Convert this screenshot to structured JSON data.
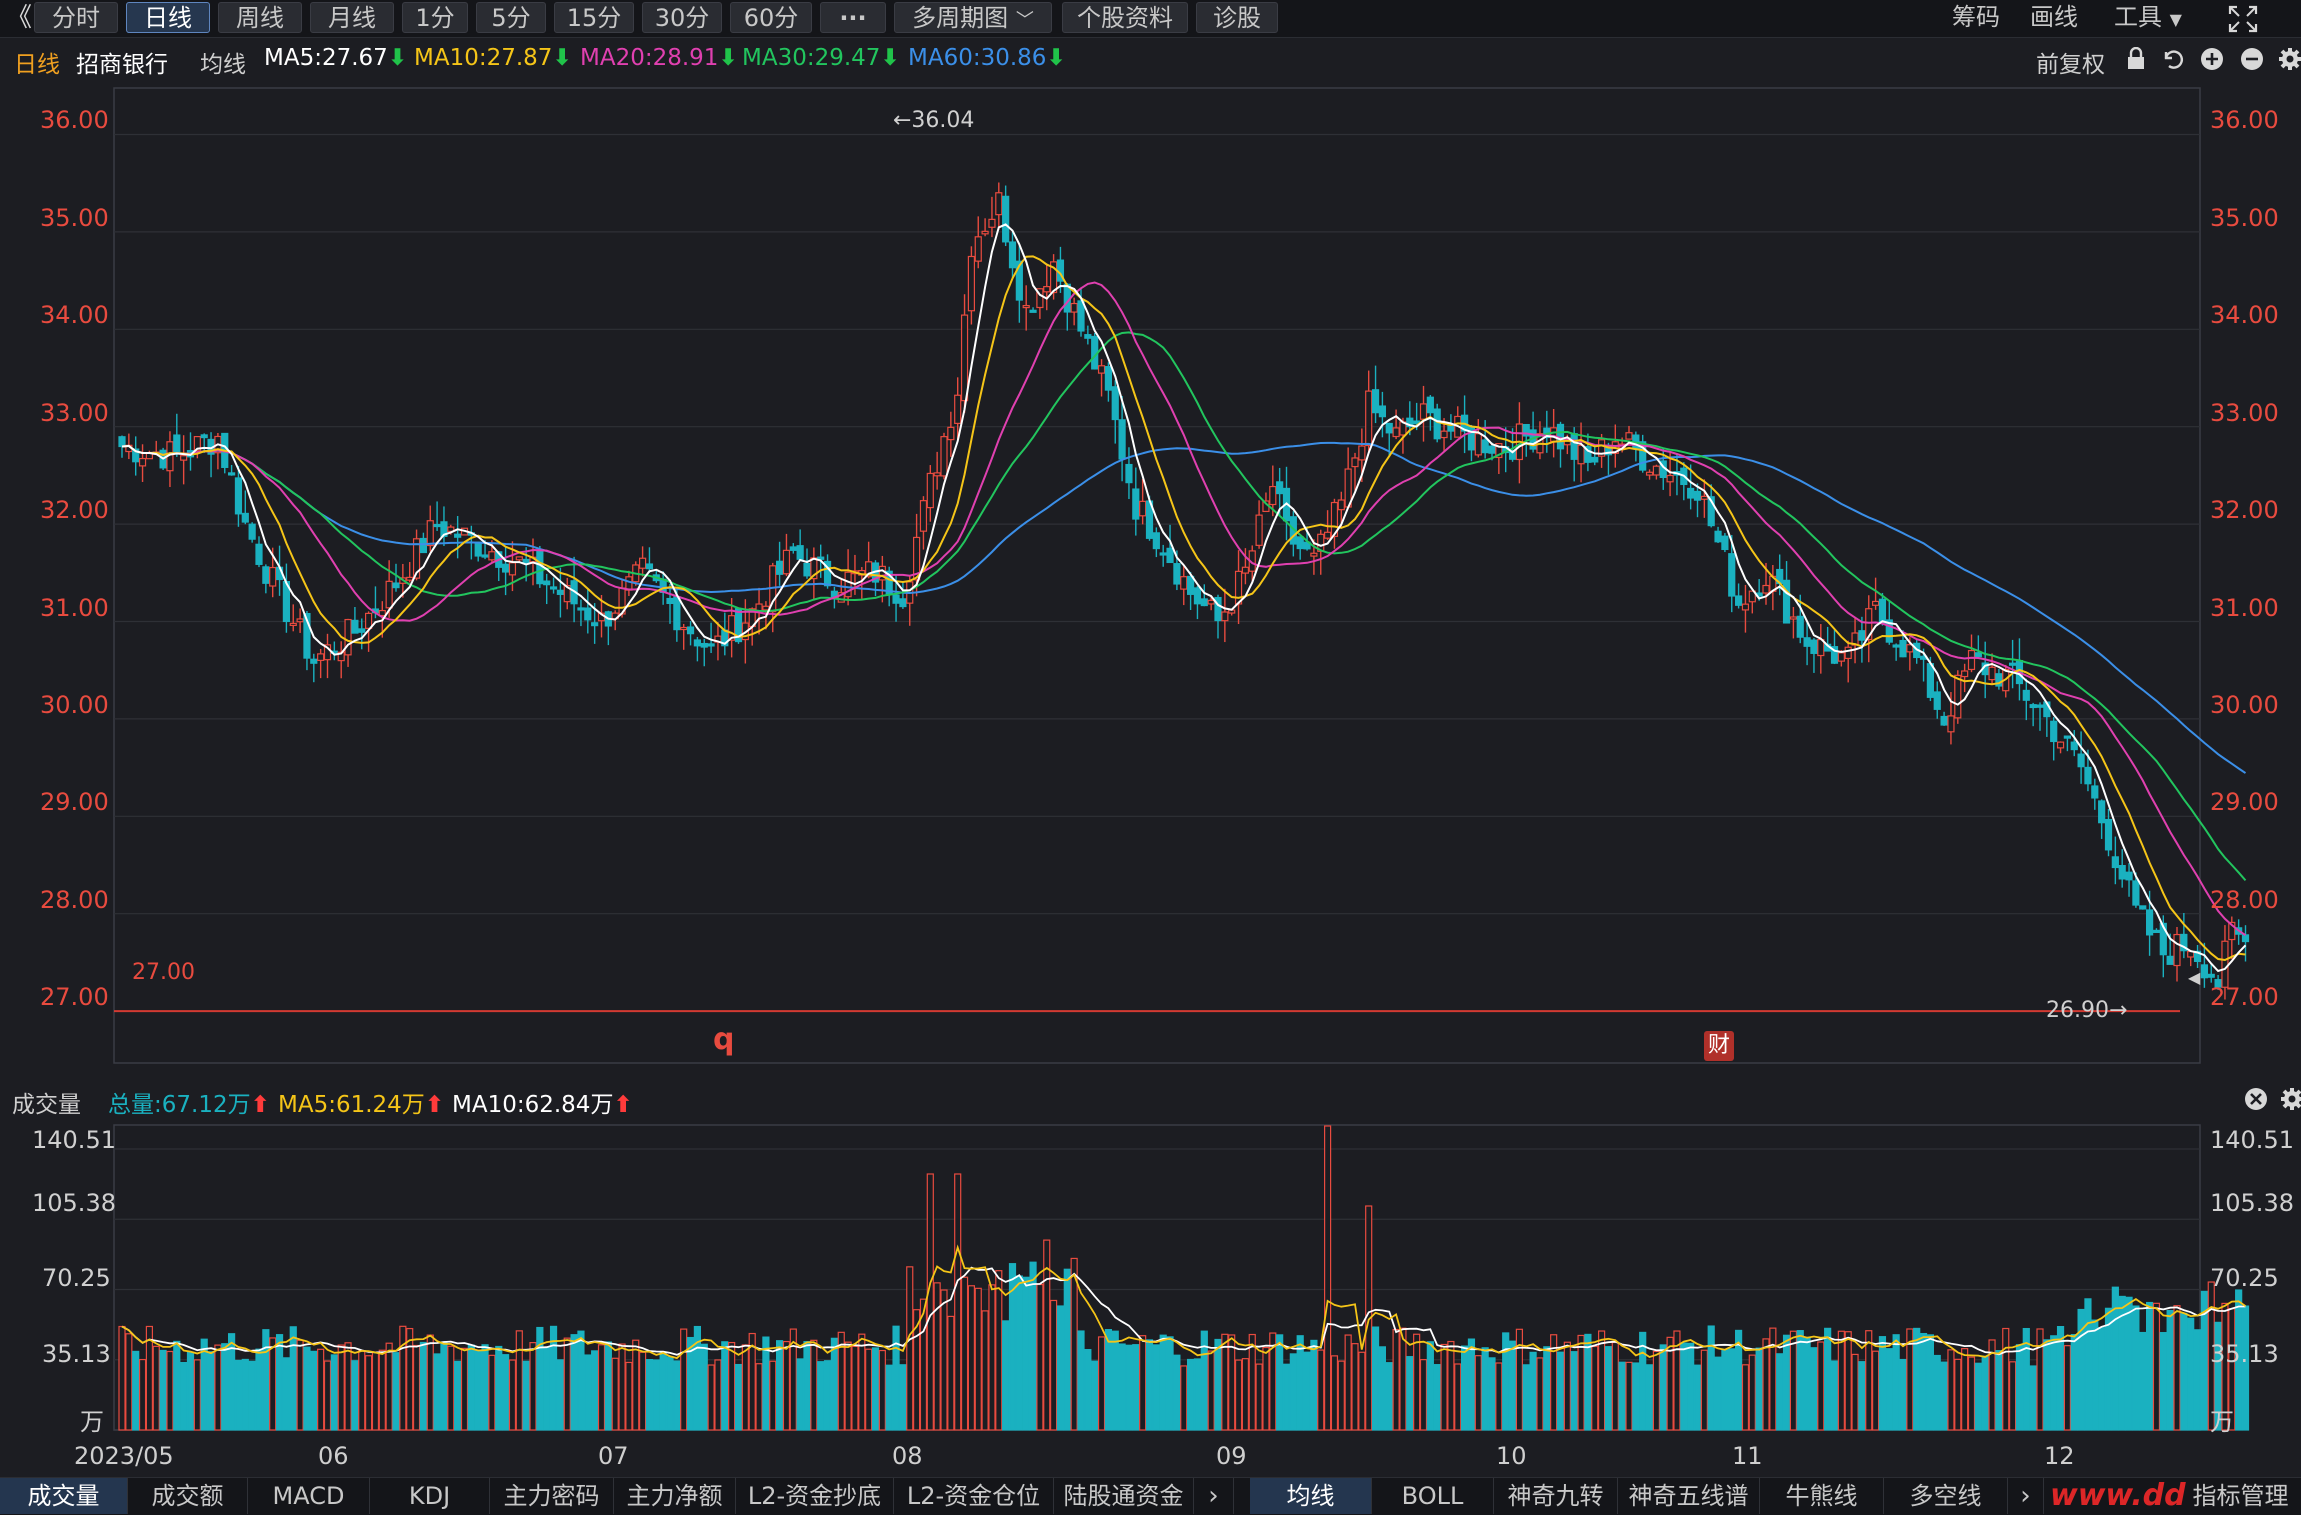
{
  "toolbar": {
    "back_icon": "double-chevron-left-icon",
    "periods": [
      "分时",
      "日线",
      "周线",
      "月线",
      "1分",
      "5分",
      "15分",
      "30分",
      "60分"
    ],
    "active_period": "日线",
    "more_label": "···",
    "multi_period_label": "多周期图",
    "profile_label": "个股资料",
    "diagnose_label": "诊股",
    "chips_label": "筹码",
    "draw_label": "画线",
    "tools_label": "工具",
    "fullscreen_icon": "fullscreen-icon"
  },
  "info": {
    "period": "日线",
    "stock_name": "招商银行",
    "ma_label": "均线",
    "ma5": "MA5:27.67",
    "ma10": "MA10:27.87",
    "ma20": "MA20:28.91",
    "ma30": "MA30:29.47",
    "ma60": "MA60:30.86",
    "arrow_down": "⬇",
    "adjust_label": "前复权",
    "colors": {
      "ma5": "#ffffff",
      "ma10": "#f5c518",
      "ma20": "#e040b0",
      "ma30": "#22c55e",
      "ma60": "#3b8fe8",
      "up": "#e84b3f",
      "down": "#1ab1c0"
    }
  },
  "price_axis": {
    "labels": [
      "36.00",
      "35.00",
      "34.00",
      "33.00",
      "32.00",
      "31.00",
      "30.00",
      "29.00",
      "28.00",
      "27.00"
    ],
    "ref_line_label": "27.00",
    "high_marker": "←36.04",
    "low_marker": "26.90→",
    "event_q": "q",
    "event_cai": "财"
  },
  "volume": {
    "title": "成交量",
    "total": "总量:67.12万",
    "ma5": "MA5:61.24万",
    "ma10": "MA10:62.84万",
    "arrow_up": "⬆",
    "axis_labels": [
      "140.51",
      "105.38",
      "70.25",
      "35.13",
      "万"
    ]
  },
  "dates": [
    "2023/05",
    "06",
    "07",
    "08",
    "09",
    "10",
    "11",
    "12"
  ],
  "bottom_tabs": {
    "left": [
      "成交量",
      "成交额",
      "MACD",
      "KDJ",
      "主力密码",
      "主力净额",
      "L2-资金抄底",
      "L2-资金仓位",
      "陆股通资金"
    ],
    "right": [
      "均线",
      "BOLL",
      "神奇九转",
      "神奇五线谱",
      "牛熊线",
      "多空线"
    ],
    "right_tail": "指标管理",
    "scroll_icon": "chevron-right-icon",
    "watermark": "www.dd"
  },
  "chart_data": [
    {
      "type": "candlestick",
      "title": "招商银行 日线",
      "ylim": [
        26.6,
        36.3
      ],
      "x_period": "2023/05 - 2023/12",
      "ma_last": {
        "MA5": 27.67,
        "MA10": 27.87,
        "MA20": 28.91,
        "MA30": 29.47,
        "MA60": 30.86
      },
      "high": 36.04,
      "low": 26.9,
      "reference_line": 27.0
    },
    {
      "type": "bar",
      "title": "成交量",
      "unit": "万",
      "ylim": [
        0,
        152
      ],
      "last_total": 67.12,
      "ma5_last": 61.24,
      "ma10_last": 62.84
    }
  ]
}
